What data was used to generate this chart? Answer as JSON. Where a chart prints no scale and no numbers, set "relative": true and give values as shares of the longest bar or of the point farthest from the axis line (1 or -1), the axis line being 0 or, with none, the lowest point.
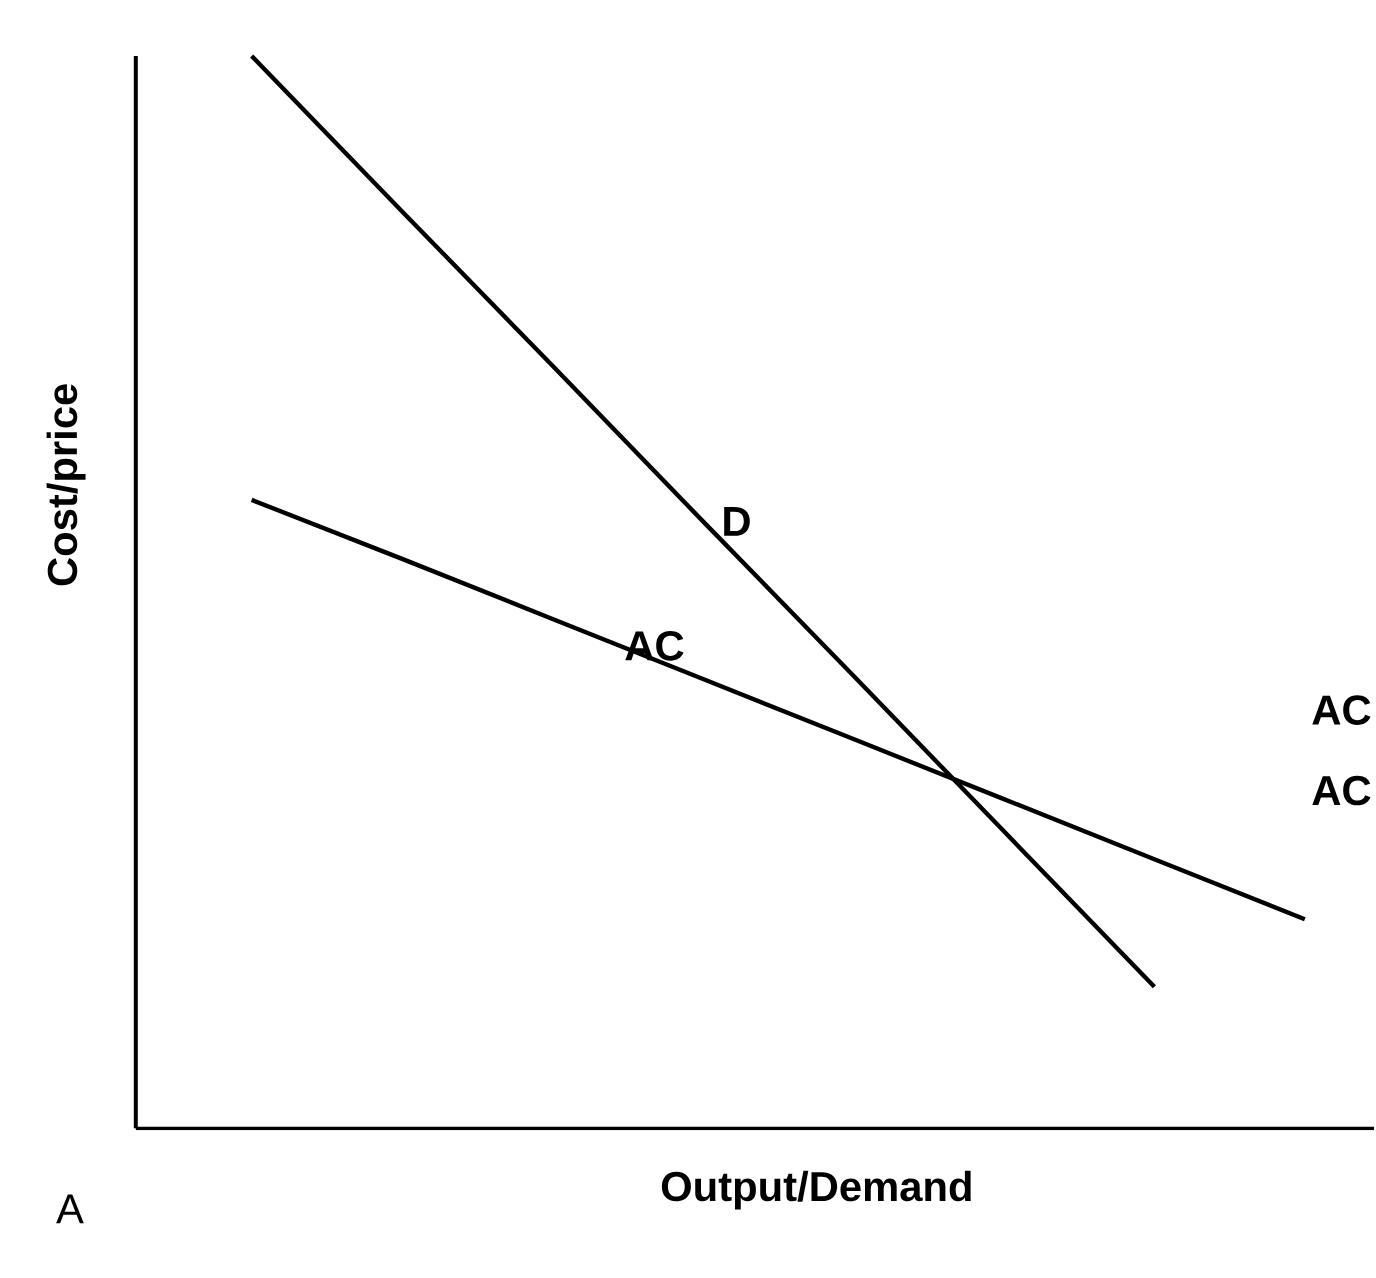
{
  "chart_data": {
    "type": "line",
    "relative": true,
    "xlabel": "Output/Demand",
    "ylabel": "Cost/price",
    "marker": "none",
    "line_style": "solid",
    "categories": [
      null,
      null,
      null,
      null,
      null,
      null,
      null,
      null
    ],
    "series": [
      {
        "name": "D",
        "color": "#000000",
        "values": [
          1,
          0.855,
          0.711,
          0.566,
          0.422,
          0.277,
          0.132,
          null
        ]
      },
      {
        "name": "AC",
        "color": "#000000",
        "values": [
          0.586,
          0.531,
          0.475,
          0.419,
          0.363,
          0.307,
          0.251,
          0.195
        ]
      }
    ],
    "annotations": [
      "AC",
      "AC",
      "A"
    ]
  }
}
